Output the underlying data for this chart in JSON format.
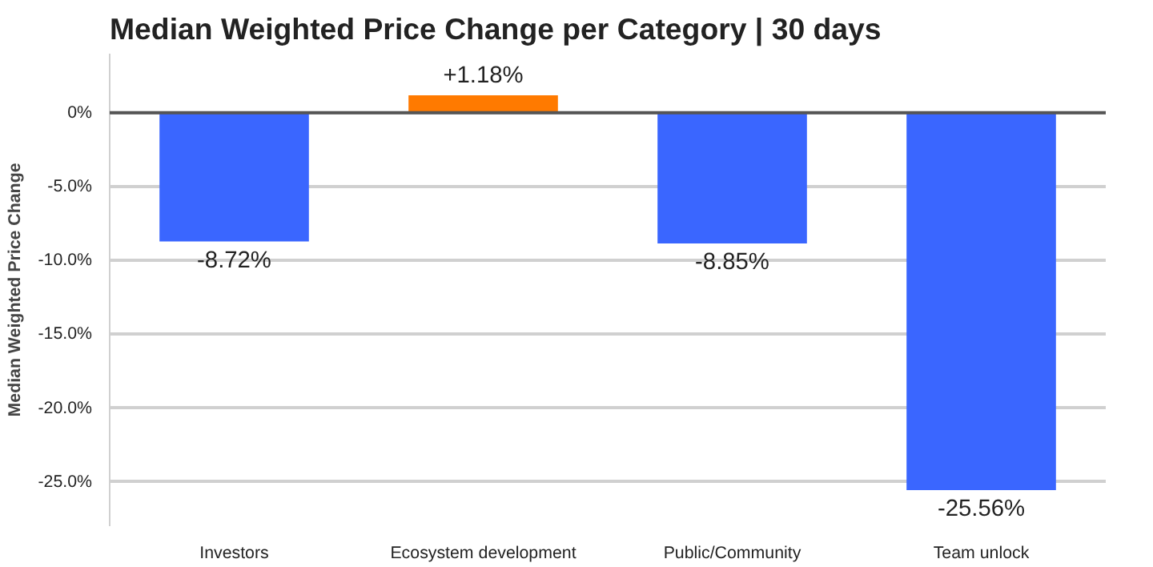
{
  "chart_data": {
    "type": "bar",
    "title": "Median Weighted Price Change per Category | 30 days",
    "ylabel": "Median Weighted Price Change",
    "categories": [
      "Investors",
      "Ecosystem development",
      "Public/Community",
      "Team unlock"
    ],
    "values": [
      -8.72,
      1.18,
      -8.85,
      -25.56
    ],
    "colors": [
      "#3a66ff",
      "#ff7a00",
      "#3a66ff",
      "#3a66ff"
    ],
    "value_labels": [
      "-8.72%",
      "+1.18%",
      "-8.85%",
      "-25.56%"
    ],
    "ylim": [
      -28,
      4
    ],
    "yticks": [
      {
        "value": 0,
        "label": "0%"
      },
      {
        "value": -5,
        "label": "-5.0%"
      },
      {
        "value": -10,
        "label": "-10.0%"
      },
      {
        "value": -15,
        "label": "-15.0%"
      },
      {
        "value": -20,
        "label": "-20.0%"
      },
      {
        "value": -25,
        "label": "-25.0%"
      }
    ],
    "grid": "y",
    "ref_lines": [
      {
        "axis": "y",
        "value": 0,
        "color": "#555555"
      }
    ]
  }
}
